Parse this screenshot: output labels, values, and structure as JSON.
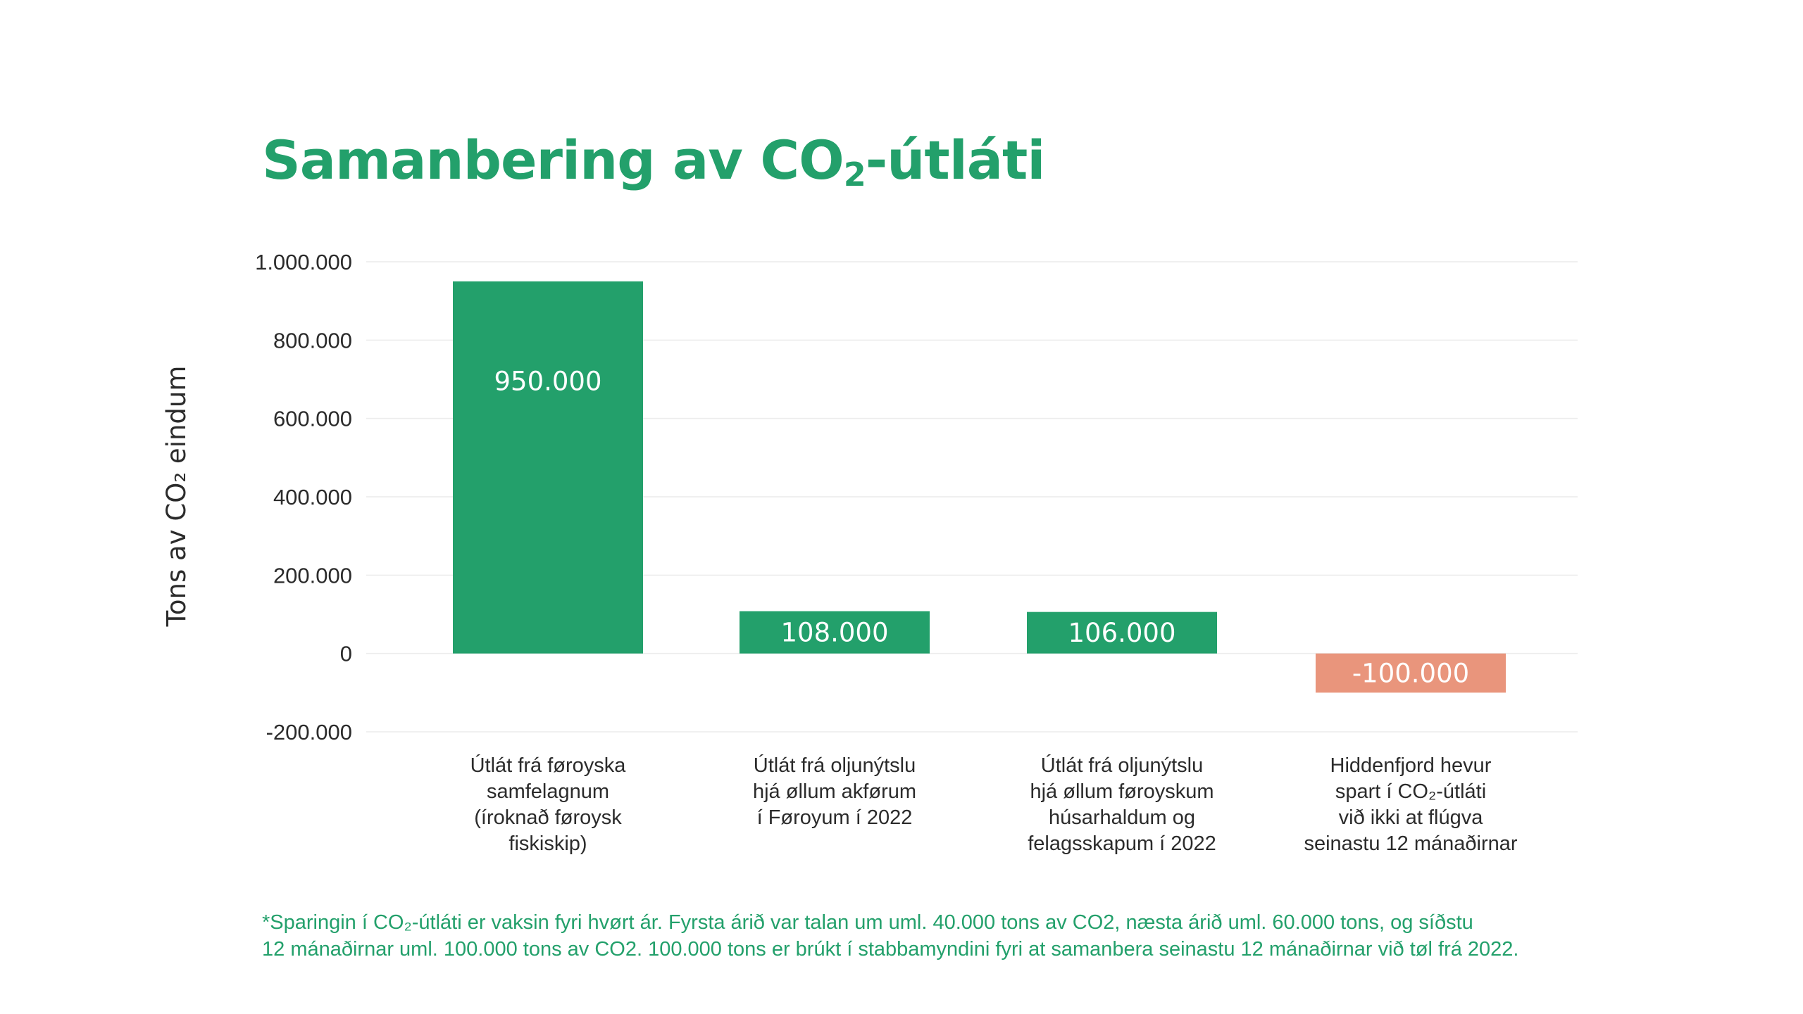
{
  "title": {
    "pre": "Samanbering av CO",
    "sub": "2",
    "post": "-útláti"
  },
  "colors": {
    "accent": "#23a06b",
    "positive": "#23a06b",
    "negative": "#e9957c",
    "text": "#2b2b2b",
    "grid": "#ececec"
  },
  "chart_data": {
    "type": "bar",
    "ylabel": "Tons av CO₂ eindum",
    "ylim": [
      -200000,
      1000000
    ],
    "yticks": [
      1000000,
      800000,
      600000,
      400000,
      200000,
      0,
      -200000
    ],
    "ytick_labels": [
      "1.000.000",
      "800.000",
      "600.000",
      "400.000",
      "200.000",
      "0",
      "-200.000"
    ],
    "grid": true,
    "categories": [
      [
        "Útlát frá føroyska",
        "samfelagnum",
        "(íroknað føroysk",
        "fiskiskip)"
      ],
      [
        "Útlát frá oljunýtslu",
        "hjá øllum akførum",
        "í Føroyum í 2022"
      ],
      [
        "Útlát frá oljunýtslu",
        "hjá øllum føroyskum",
        "húsarhaldum og",
        "felagsskapum í 2022"
      ],
      [
        "Hiddenfjord hevur",
        "spart í CO₂-útláti",
        "við ikki at flúgva",
        "seinastu 12 mánaðirnar"
      ]
    ],
    "values": [
      950000,
      108000,
      106000,
      -100000
    ],
    "data_labels": [
      "950.000",
      "108.000",
      "106.000",
      "-100.000"
    ]
  },
  "footnote": {
    "line1": "*Sparingin í CO₂-útláti er vaksin fyri hvørt ár. Fyrsta árið var talan um uml. 40.000 tons av CO2, næsta árið uml. 60.000 tons, og síðstu",
    "line2": "12 mánaðirnar uml. 100.000 tons av CO2. 100.000 tons er brúkt í stabbamyndini fyri at samanbera seinastu 12 mánaðirnar við tøl frá 2022."
  }
}
